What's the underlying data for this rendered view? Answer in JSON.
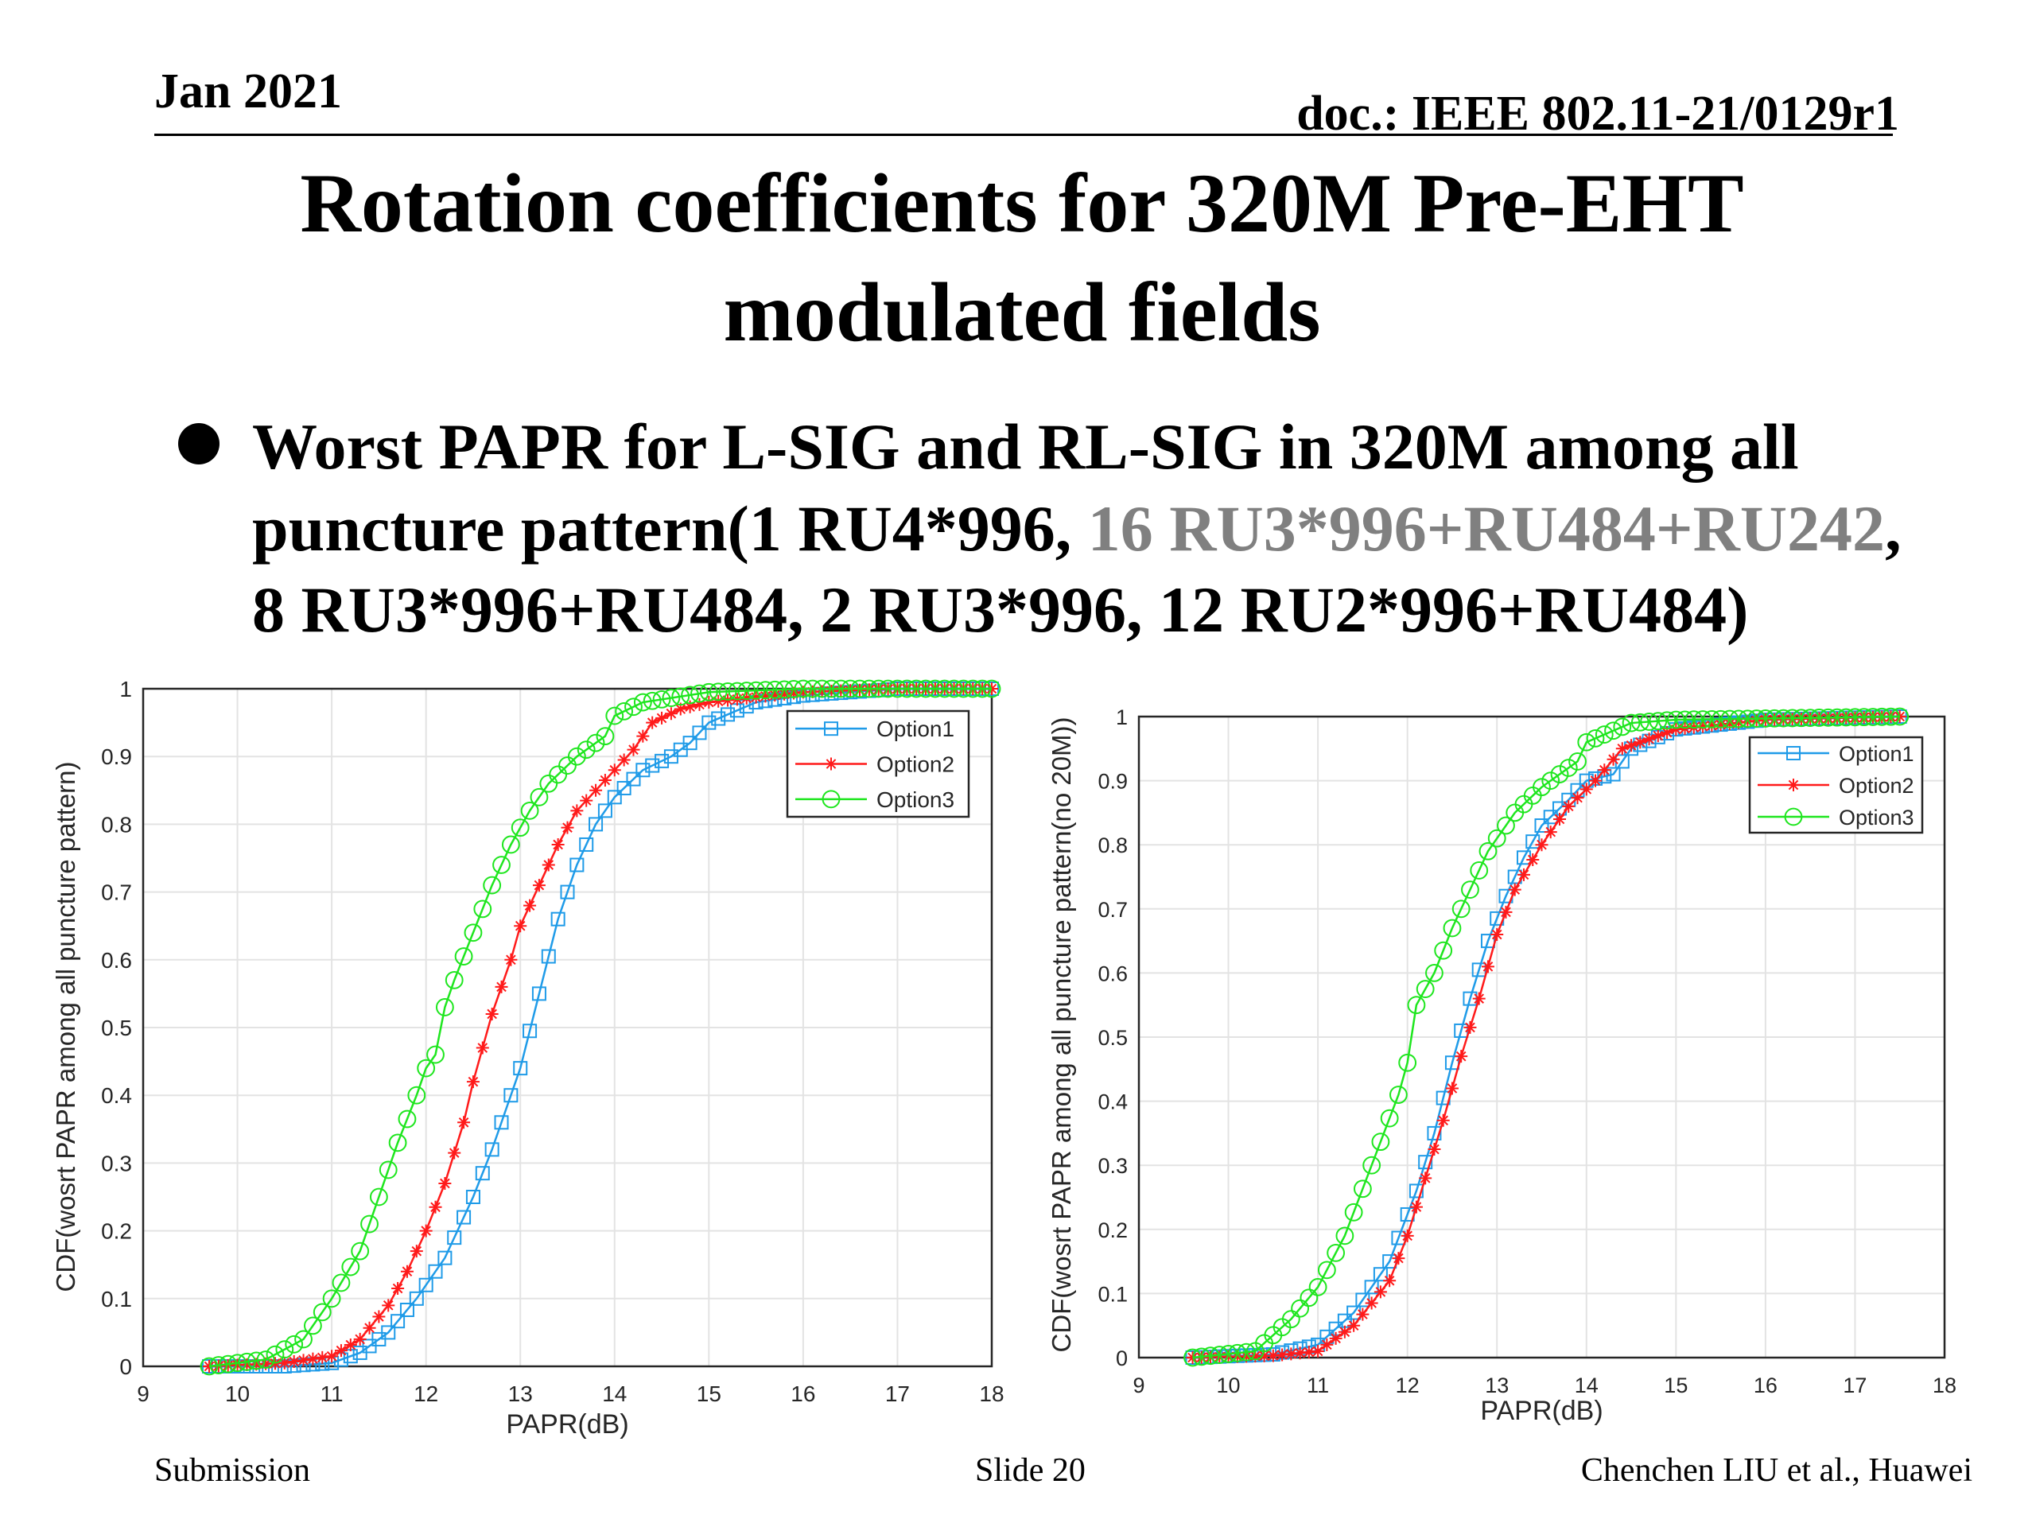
{
  "header": {
    "date": "Jan 2021",
    "doc": "doc.: IEEE 802.11-21/0129r1"
  },
  "title": {
    "line1": "Rotation coefficients for 320M Pre-EHT",
    "line2": "modulated fields"
  },
  "bullet": {
    "line1": "Worst PAPR for L-SIG and RL-SIG in 320M among all",
    "line2_a": "puncture pattern(1 RU4*996, ",
    "line2_b": "16 RU3*996+RU484+RU242",
    "line2_c": ",",
    "line3": "8 RU3*996+RU484, 2 RU3*996, 12 RU2*996+RU484)"
  },
  "footer": {
    "left": "Submission",
    "center": "Slide 20",
    "right": "Chenchen LIU et al., Huawei"
  },
  "colors": {
    "option1": "#1f9be8",
    "option2": "#ff1a1a",
    "option3": "#1ee61e"
  },
  "chart_data": [
    {
      "type": "line",
      "title": "",
      "xlabel": "PAPR(dB)",
      "ylabel": "CDF(wosrt PAPR among all puncture pattern)",
      "xlim": [
        9,
        18
      ],
      "ylim": [
        0,
        1
      ],
      "xticks": [
        "9",
        "10",
        "11",
        "12",
        "13",
        "14",
        "15",
        "16",
        "17",
        "18"
      ],
      "yticks": [
        "0",
        "0.1",
        "0.2",
        "0.3",
        "0.4",
        "0.5",
        "0.6",
        "0.7",
        "0.8",
        "0.9",
        "1"
      ],
      "grid": true,
      "legend_position": "top-right",
      "series": [
        {
          "name": "Option1",
          "marker": "square",
          "x": [
            9.7,
            10.5,
            11,
            11.3,
            11.6,
            11.9,
            12.2,
            12.5,
            12.7,
            12.9,
            13.0,
            13.2,
            13.4,
            13.6,
            13.8,
            14.0,
            14.3,
            14.6,
            14.8,
            15,
            15.5,
            16,
            17,
            18
          ],
          "y": [
            0,
            0,
            0.005,
            0.02,
            0.05,
            0.1,
            0.16,
            0.25,
            0.32,
            0.4,
            0.44,
            0.55,
            0.66,
            0.74,
            0.8,
            0.84,
            0.88,
            0.9,
            0.92,
            0.95,
            0.98,
            0.99,
            1,
            1
          ]
        },
        {
          "name": "Option2",
          "marker": "star",
          "x": [
            9.7,
            10.5,
            11,
            11.3,
            11.6,
            11.8,
            12.0,
            12.2,
            12.4,
            12.5,
            12.7,
            12.9,
            13.0,
            13.2,
            13.4,
            13.6,
            13.8,
            14.0,
            14.2,
            14.4,
            14.7,
            15,
            16,
            17,
            18
          ],
          "y": [
            0,
            0.005,
            0.015,
            0.04,
            0.09,
            0.14,
            0.2,
            0.27,
            0.36,
            0.42,
            0.52,
            0.6,
            0.65,
            0.71,
            0.77,
            0.82,
            0.85,
            0.88,
            0.91,
            0.95,
            0.97,
            0.98,
            0.995,
            1,
            1
          ]
        },
        {
          "name": "Option3",
          "marker": "circle",
          "x": [
            9.7,
            10.3,
            10.7,
            11.0,
            11.3,
            11.5,
            11.7,
            11.9,
            12.0,
            12.1,
            12.2,
            12.3,
            12.5,
            12.7,
            12.9,
            13.1,
            13.3,
            13.6,
            13.9,
            14.0,
            14.3,
            15,
            16,
            17,
            18
          ],
          "y": [
            0,
            0.01,
            0.04,
            0.1,
            0.17,
            0.25,
            0.33,
            0.4,
            0.44,
            0.46,
            0.53,
            0.57,
            0.64,
            0.71,
            0.77,
            0.82,
            0.86,
            0.9,
            0.93,
            0.96,
            0.98,
            0.995,
            1,
            1,
            1
          ]
        }
      ]
    },
    {
      "type": "line",
      "title": "",
      "xlabel": "PAPR(dB)",
      "ylabel": "CDF(wosrt PAPR among all puncture pattern(no 20M))",
      "xlim": [
        9,
        18
      ],
      "ylim": [
        0,
        1
      ],
      "xticks": [
        "9",
        "10",
        "11",
        "12",
        "13",
        "14",
        "15",
        "16",
        "17",
        "18"
      ],
      "yticks": [
        "0",
        "0.1",
        "0.2",
        "0.3",
        "0.4",
        "0.5",
        "0.6",
        "0.7",
        "0.8",
        "0.9",
        "1"
      ],
      "grid": true,
      "legend_position": "top-right",
      "series": [
        {
          "name": "Option1",
          "marker": "square",
          "x": [
            9.6,
            10.5,
            11,
            11.4,
            11.8,
            12.1,
            12.3,
            12.5,
            12.7,
            12.9,
            13.1,
            13.3,
            13.5,
            13.8,
            14.0,
            14.3,
            14.5,
            15,
            16,
            17.5
          ],
          "y": [
            0,
            0.005,
            0.02,
            0.07,
            0.15,
            0.26,
            0.35,
            0.46,
            0.56,
            0.65,
            0.72,
            0.78,
            0.83,
            0.87,
            0.9,
            0.91,
            0.95,
            0.98,
            0.995,
            1
          ]
        },
        {
          "name": "Option2",
          "marker": "star",
          "x": [
            9.6,
            10.5,
            11,
            11.4,
            11.8,
            12.0,
            12.2,
            12.4,
            12.6,
            12.8,
            13.0,
            13.2,
            13.5,
            13.8,
            14.1,
            14.4,
            15,
            16,
            17.5
          ],
          "y": [
            0,
            0.003,
            0.01,
            0.05,
            0.12,
            0.19,
            0.28,
            0.37,
            0.47,
            0.56,
            0.66,
            0.73,
            0.8,
            0.86,
            0.9,
            0.95,
            0.98,
            0.995,
            1
          ]
        },
        {
          "name": "Option3",
          "marker": "circle",
          "x": [
            9.6,
            10.3,
            10.7,
            11.0,
            11.3,
            11.6,
            11.9,
            12.0,
            12.1,
            12.3,
            12.5,
            12.7,
            12.9,
            13.2,
            13.5,
            13.9,
            14.0,
            14.5,
            15,
            17.5
          ],
          "y": [
            0,
            0.01,
            0.06,
            0.11,
            0.19,
            0.3,
            0.41,
            0.46,
            0.55,
            0.6,
            0.67,
            0.73,
            0.79,
            0.85,
            0.89,
            0.93,
            0.96,
            0.99,
            0.995,
            1
          ]
        }
      ]
    }
  ]
}
